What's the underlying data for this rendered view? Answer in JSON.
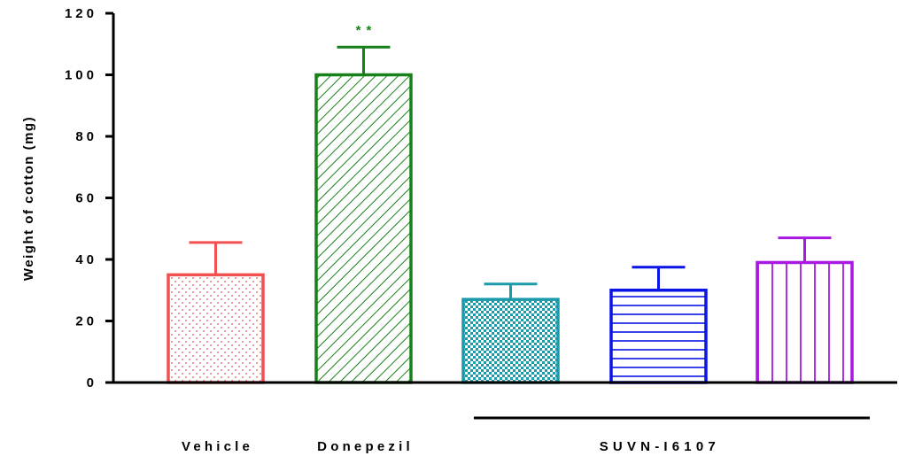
{
  "chart_data": {
    "type": "bar",
    "ylabel": "Weight of cotton (mg)",
    "ylim": [
      0,
      120
    ],
    "yticks": [
      "0",
      "20",
      "40",
      "60",
      "80",
      "100",
      "120"
    ],
    "grid": false,
    "bars": [
      {
        "value": 35,
        "error": 10.5,
        "color": "#f05050",
        "pattern": "dots"
      },
      {
        "value": 100,
        "error": 9,
        "color": "#188018",
        "pattern": "diagonal",
        "annotation": "**"
      },
      {
        "value": 27,
        "error": 5,
        "color": "#1a9aaa",
        "pattern": "checker"
      },
      {
        "value": 30,
        "error": 7.5,
        "color": "#0a14e6",
        "pattern": "horizontal"
      },
      {
        "value": 39,
        "error": 8,
        "color": "#a818e0",
        "pattern": "vertical"
      }
    ],
    "group_labels": [
      {
        "label": "Vehicle",
        "bars": [
          0
        ]
      },
      {
        "label": "Donepezil",
        "bars": [
          1
        ]
      },
      {
        "label": "SUVN-I6107",
        "bars": [
          2,
          3,
          4
        ],
        "underline": true
      }
    ]
  }
}
